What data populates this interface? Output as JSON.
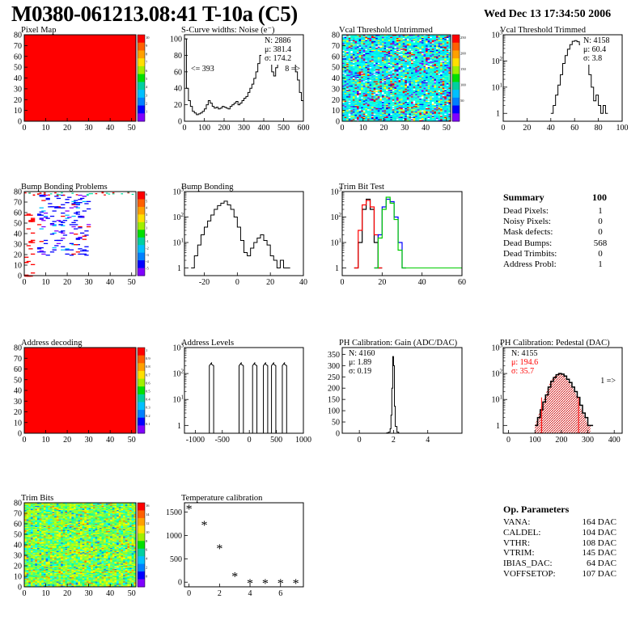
{
  "header": {
    "title": "M0380-061213.08:41 T-10a (C5)",
    "date": "Wed Dec 13 17:34:50 2006"
  },
  "colors": {
    "red": "#ff0000",
    "blue": "#0000ff",
    "green": "#00cc00",
    "hatch": "#cc0000"
  },
  "chart_data": [
    {
      "id": "pixel-map",
      "type": "heatmap",
      "title": "Pixel Map",
      "xlim": [
        0,
        52
      ],
      "ylim": [
        0,
        80
      ],
      "xticks": [
        0,
        10,
        20,
        30,
        40,
        50
      ],
      "yticks": [
        0,
        10,
        20,
        30,
        40,
        50,
        60,
        70,
        80
      ],
      "fill": "uniform-red",
      "palette_ticks": [
        "10",
        "9",
        "8",
        "7",
        "6",
        "5",
        "4",
        "3",
        "2",
        "1"
      ]
    },
    {
      "id": "scurve",
      "type": "line",
      "title": "S-Curve widths: Noise (e⁻)",
      "xlim": [
        0,
        600
      ],
      "ylim": [
        0,
        105
      ],
      "xticks": [
        0,
        100,
        200,
        300,
        400,
        500,
        600
      ],
      "yticks": [
        0,
        20,
        40,
        60,
        80,
        100
      ],
      "stats": {
        "n": "N: 2886",
        "mu": "μ:  381.4",
        "sigma": "σ:  174.2"
      },
      "annotations": {
        "left": "<= 393",
        "right": "8 =>"
      },
      "x": [
        0,
        10,
        20,
        30,
        40,
        50,
        60,
        70,
        80,
        90,
        100,
        110,
        120,
        130,
        140,
        150,
        160,
        170,
        180,
        190,
        200,
        210,
        220,
        230,
        240,
        250,
        260,
        270,
        280,
        290,
        300,
        310,
        320,
        330,
        340,
        350,
        360,
        370,
        380,
        390,
        400,
        410,
        420,
        430,
        440,
        450,
        460,
        470,
        480,
        490,
        500,
        510,
        520,
        530,
        540,
        550,
        560,
        570,
        580,
        590
      ],
      "y": [
        100,
        40,
        25,
        18,
        12,
        10,
        8,
        9,
        10,
        12,
        15,
        20,
        25,
        22,
        18,
        16,
        17,
        15,
        16,
        18,
        17,
        16,
        15,
        18,
        20,
        22,
        24,
        20,
        22,
        25,
        28,
        30,
        35,
        40,
        45,
        52,
        60,
        70,
        80,
        75,
        85,
        88,
        80,
        70,
        60,
        55,
        65,
        70,
        72,
        80,
        85,
        78,
        90,
        75,
        82,
        70,
        60,
        50,
        35,
        25
      ]
    },
    {
      "id": "vcal-untrimmed",
      "type": "heatmap",
      "title": "Vcal Threshold Untrimmed",
      "xlim": [
        0,
        52
      ],
      "ylim": [
        0,
        80
      ],
      "xticks": [
        0,
        10,
        20,
        30,
        40,
        50
      ],
      "yticks": [
        0,
        10,
        20,
        30,
        40,
        50,
        60,
        70,
        80
      ],
      "fill": "noisy-cyan",
      "palette_ticks": [
        "250",
        "200",
        "150",
        "100",
        "50"
      ]
    },
    {
      "id": "vcal-trimmed",
      "type": "line",
      "title": "Vcal Threshold Trimmed",
      "xlim": [
        0,
        100
      ],
      "ylim_log": [
        0.5,
        1000
      ],
      "xticks": [
        0,
        20,
        40,
        60,
        80,
        100
      ],
      "stats": {
        "n": "N: 4158",
        "mu": "μ:  60.4",
        "sigma": "σ:  3.8"
      },
      "x": [
        40,
        42,
        44,
        46,
        48,
        50,
        52,
        54,
        56,
        58,
        60,
        62,
        64,
        66,
        68,
        70,
        72,
        74,
        76,
        78,
        80,
        82,
        84,
        86
      ],
      "y": [
        1,
        2,
        5,
        12,
        30,
        80,
        160,
        280,
        420,
        560,
        600,
        540,
        420,
        300,
        160,
        80,
        30,
        10,
        3,
        5,
        2,
        1,
        2,
        1
      ]
    },
    {
      "id": "bump-problems",
      "type": "heatmap",
      "title": "Bump Bonding Problems",
      "xlim": [
        0,
        52
      ],
      "ylim": [
        0,
        80
      ],
      "xticks": [
        0,
        10,
        20,
        30,
        40,
        50
      ],
      "yticks": [
        0,
        10,
        20,
        30,
        40,
        50,
        60,
        70,
        80
      ],
      "fill": "sparse-blue",
      "palette_ticks": [
        "6",
        "5",
        "4",
        "3",
        "2",
        "1",
        "0",
        "-1",
        "-2",
        "-3",
        "-4",
        "-5"
      ]
    },
    {
      "id": "bump-bonding",
      "type": "line",
      "title": "Bump Bonding",
      "xlim": [
        -32,
        40
      ],
      "ylim_log": [
        0.5,
        1000
      ],
      "xticks": [
        -20,
        0,
        20,
        40
      ],
      "x": [
        -28,
        -26,
        -24,
        -22,
        -20,
        -18,
        -16,
        -14,
        -12,
        -10,
        -8,
        -6,
        -4,
        -2,
        0,
        2,
        4,
        6,
        8,
        10,
        12,
        14,
        16,
        18,
        20,
        22,
        24,
        26,
        28,
        30
      ],
      "y": [
        1,
        3,
        8,
        20,
        40,
        70,
        120,
        200,
        280,
        350,
        420,
        300,
        200,
        100,
        40,
        12,
        4,
        3,
        6,
        10,
        15,
        20,
        12,
        8,
        3,
        2,
        1,
        2,
        1,
        1
      ]
    },
    {
      "id": "trim-bit-test",
      "type": "line",
      "title": "Trim Bit Test",
      "xlim": [
        0,
        60
      ],
      "ylim_log": [
        0.5,
        1000
      ],
      "xticks": [
        0,
        20,
        40,
        60
      ],
      "series": [
        {
          "color": "#000000",
          "x": [
            6,
            8,
            10,
            12,
            14,
            16,
            18
          ],
          "y": [
            1,
            10,
            200,
            500,
            200,
            10,
            1
          ]
        },
        {
          "color": "#ff0000",
          "x": [
            6,
            8,
            10,
            12,
            14,
            16,
            18
          ],
          "y": [
            1,
            30,
            300,
            450,
            250,
            20,
            1
          ]
        },
        {
          "color": "#0000ff",
          "x": [
            16,
            18,
            20,
            22,
            24,
            26,
            28,
            30
          ],
          "y": [
            1,
            20,
            250,
            500,
            400,
            100,
            10,
            1
          ]
        },
        {
          "color": "#00cc00",
          "x": [
            16,
            18,
            20,
            22,
            24,
            26,
            28,
            30
          ],
          "y": [
            1,
            15,
            200,
            600,
            350,
            80,
            5,
            1
          ]
        }
      ]
    },
    {
      "id": "address-decoding",
      "type": "heatmap",
      "title": "Address decoding",
      "xlim": [
        0,
        52
      ],
      "ylim": [
        0,
        80
      ],
      "xticks": [
        0,
        10,
        20,
        30,
        40,
        50
      ],
      "yticks": [
        0,
        10,
        20,
        30,
        40,
        50,
        60,
        70,
        80
      ],
      "fill": "uniform-red",
      "palette_ticks": [
        "1",
        "0.9",
        "0.8",
        "0.7",
        "0.6",
        "0.5",
        "0.4",
        "0.3",
        "0.2",
        "0.1"
      ]
    },
    {
      "id": "address-levels",
      "type": "line",
      "title": "Address Levels",
      "xlim": [
        -1200,
        1000
      ],
      "ylim_log": [
        0.5,
        1000
      ],
      "xticks": [
        -1000,
        -500,
        0,
        500,
        1000
      ],
      "peaks": [
        -700,
        -150,
        100,
        300,
        450,
        650
      ],
      "peak_height": 200
    },
    {
      "id": "ph-gain",
      "type": "line",
      "title": "PH Calibration: Gain (ADC/DAC)",
      "xlim": [
        -1,
        6
      ],
      "ylim": [
        0,
        380
      ],
      "xticks": [
        0,
        2,
        4
      ],
      "yticks": [
        0,
        50,
        100,
        150,
        200,
        250,
        300,
        350
      ],
      "stats": {
        "n": "N: 4160",
        "mu": "μ:  1.89",
        "sigma": "σ:  0.19"
      },
      "x": [
        1.5,
        1.6,
        1.7,
        1.8,
        1.85,
        1.9,
        1.95,
        2.0,
        2.05,
        2.1,
        2.2,
        2.3
      ],
      "y": [
        0,
        2,
        5,
        20,
        80,
        200,
        340,
        300,
        120,
        30,
        5,
        0
      ]
    },
    {
      "id": "ph-pedestal",
      "type": "line",
      "title": "PH Calibration: Pedestal (DAC)",
      "xlim": [
        -20,
        430
      ],
      "ylim_log": [
        0.5,
        1000
      ],
      "xticks": [
        0,
        100,
        200,
        300,
        400
      ],
      "stats": {
        "n": "N: 4155",
        "mu": "μ:  194.6",
        "sigma": "σ:  35.7"
      },
      "annotation": "1 =>",
      "x": [
        100,
        110,
        120,
        130,
        140,
        150,
        160,
        170,
        180,
        190,
        200,
        210,
        220,
        230,
        240,
        250,
        260,
        270,
        280,
        290,
        300,
        310
      ],
      "y": [
        1,
        2,
        4,
        8,
        15,
        30,
        50,
        70,
        90,
        100,
        95,
        80,
        60,
        45,
        30,
        20,
        12,
        6,
        3,
        2,
        1,
        1
      ]
    },
    {
      "id": "trim-bits",
      "type": "heatmap",
      "title": "Trim Bits",
      "xlim": [
        0,
        52
      ],
      "ylim": [
        0,
        80
      ],
      "xticks": [
        0,
        10,
        20,
        30,
        40,
        50
      ],
      "yticks": [
        0,
        10,
        20,
        30,
        40,
        50,
        60,
        70,
        80
      ],
      "fill": "noisy-green",
      "palette_ticks": [
        "16",
        "14",
        "12",
        "10",
        "8",
        "6",
        "4",
        "2",
        "0"
      ]
    },
    {
      "id": "temperature",
      "type": "scatter",
      "title": "Temperature calibration",
      "xlim": [
        -0.3,
        7.5
      ],
      "ylim": [
        -100,
        1700
      ],
      "xticks": [
        0,
        2,
        4,
        6
      ],
      "yticks": [
        0,
        500,
        1000,
        1500
      ],
      "x": [
        0,
        1,
        2,
        3,
        4,
        5,
        6,
        7
      ],
      "y": [
        1600,
        1250,
        750,
        150,
        0,
        0,
        0,
        0
      ]
    }
  ],
  "summary": {
    "title": "Summary",
    "total": "100",
    "rows": [
      {
        "label": "Dead Pixels:",
        "value": "1"
      },
      {
        "label": "Noisy Pixels:",
        "value": "0"
      },
      {
        "label": "Mask defects:",
        "value": "0"
      },
      {
        "label": "Dead Bumps:",
        "value": "568"
      },
      {
        "label": "Dead Trimbits:",
        "value": "0"
      },
      {
        "label": "Address Probl:",
        "value": "1"
      }
    ]
  },
  "op_params": {
    "title": "Op. Parameters",
    "rows": [
      {
        "label": "VANA:",
        "value": "164 DAC"
      },
      {
        "label": "CALDEL:",
        "value": "104 DAC"
      },
      {
        "label": "VTHR:",
        "value": "108 DAC"
      },
      {
        "label": "VTRIM:",
        "value": "145 DAC"
      },
      {
        "label": "IBIAS_DAC:",
        "value": "64 DAC"
      },
      {
        "label": "VOFFSETOP:",
        "value": "107 DAC"
      }
    ]
  }
}
